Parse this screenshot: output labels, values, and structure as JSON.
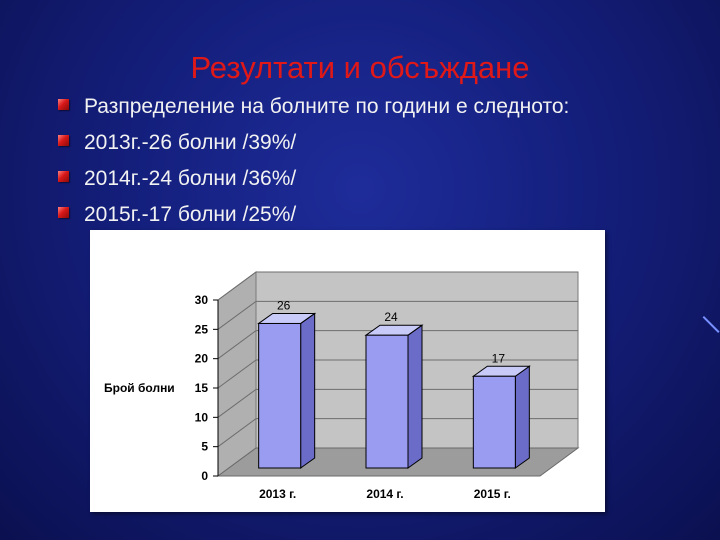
{
  "slide": {
    "title": "Резултати и обсъждане",
    "bullets": [
      "Разпределение на болните по  години е следното:",
      "2013г.-26  болни /39%/",
      "2014г.-24 болни  /36%/",
      "2015г.-17 болни /25%/"
    ]
  },
  "colors": {
    "title": "#e01818",
    "bar_front": "#9a9cf2",
    "bar_side": "#6a6cc8",
    "bar_top": "#c8caf8",
    "wall": "#c4c4c4",
    "floor": "#9c9c9c"
  },
  "chart_data": {
    "type": "bar",
    "categories": [
      "2013 г.",
      "2014 г.",
      "2015 г."
    ],
    "values": [
      26,
      24,
      17
    ],
    "data_labels": [
      "26",
      "24",
      "17"
    ],
    "ylabel": "Брой болни",
    "ylim": [
      0,
      30
    ],
    "yticks": [
      0,
      5,
      10,
      15,
      20,
      25,
      30
    ],
    "grid": true,
    "style": "3d-column"
  }
}
